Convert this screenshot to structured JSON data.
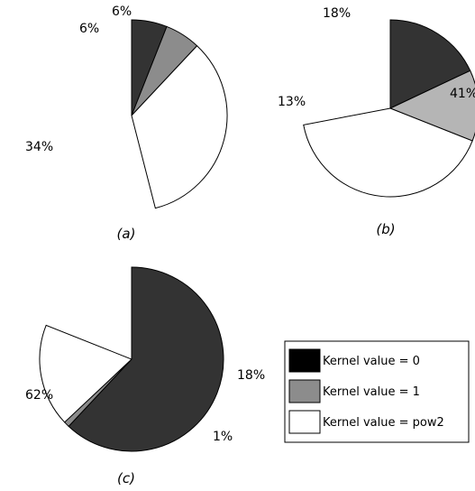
{
  "chart_data": [
    {
      "type": "pie",
      "caption": "(a)",
      "slices": [
        {
          "series": "Kernel value = 0",
          "value": 6,
          "label": "6%",
          "color": "#333333"
        },
        {
          "series": "Kernel value = 1",
          "value": 6,
          "label": "6%",
          "color": "#8c8c8c"
        },
        {
          "series": "Kernel value = pow2",
          "value": 34,
          "label": "34%",
          "color": "#ffffff"
        }
      ]
    },
    {
      "type": "pie",
      "caption": "(b)",
      "slices": [
        {
          "series": "Kernel value = 0",
          "value": 18,
          "label": "18%",
          "color": "#333333"
        },
        {
          "series": "Kernel value = 1",
          "value": 13,
          "label": "13%",
          "color": "#b5b5b5"
        },
        {
          "series": "Kernel value = pow2",
          "value": 41,
          "label": "41%",
          "color": "#ffffff"
        }
      ]
    },
    {
      "type": "pie",
      "caption": "(c)",
      "slices": [
        {
          "series": "Kernel value = 0",
          "value": 62,
          "label": "62%",
          "color": "#333333"
        },
        {
          "series": "Kernel value = 1",
          "value": 1,
          "label": "1%",
          "color": "#8c8c8c"
        },
        {
          "series": "Kernel value = pow2",
          "value": 18,
          "label": "18%",
          "color": "#ffffff"
        }
      ]
    }
  ],
  "legend": {
    "placement": "bottom-right",
    "items": [
      {
        "label": "Kernel value = 0",
        "color": "#000000"
      },
      {
        "label": "Kernel value = 1",
        "color": "#8c8c8c"
      },
      {
        "label": "Kernel value = pow2",
        "color": "#ffffff"
      }
    ]
  }
}
